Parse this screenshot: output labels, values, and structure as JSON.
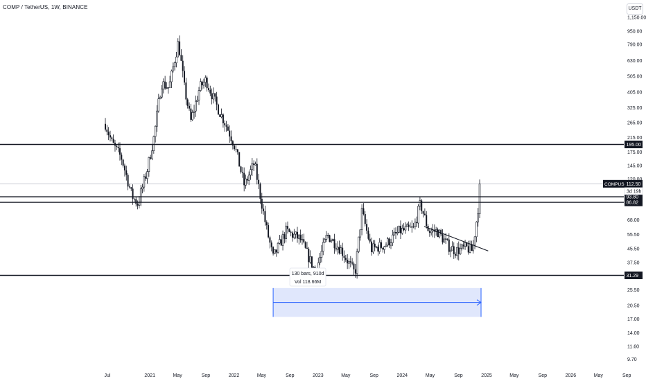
{
  "header": {
    "symbol_title": "COMP / TetherUS, 1W, BINANCE",
    "currency": "USDT"
  },
  "colors": {
    "candle": "#131722",
    "level_line": "#131722",
    "current_price_line": "#c8cbd2",
    "range_fill": "#dbe3fb",
    "range_stroke": "#2962ff",
    "axis_text": "#131722"
  },
  "chart_data": {
    "type": "candlestick",
    "scale": "log",
    "y_ticks": [
      "1,150.00",
      "950.00",
      "790.00",
      "630.00",
      "505.00",
      "405.00",
      "325.00",
      "265.00",
      "215.00",
      "175.00",
      "145.00",
      "120.00",
      "68.00",
      "55.50",
      "45.50",
      "37.50",
      "25.50",
      "20.50",
      "17.00",
      "14.00",
      "11.60",
      "9.70"
    ],
    "x_ticks": [
      "Jul",
      "2021",
      "May",
      "Sep",
      "2022",
      "May",
      "Sep",
      "2023",
      "May",
      "Sep",
      "2024",
      "May",
      "Sep",
      "2025",
      "May",
      "Sep",
      "2026",
      "May",
      "Sep"
    ],
    "ohlc_anchors": [
      {
        "date": "2020-06-22",
        "price": 260
      },
      {
        "date": "2020-07-20",
        "price": 200
      },
      {
        "date": "2020-09-01",
        "price": 160
      },
      {
        "date": "2020-10-15",
        "price": 95
      },
      {
        "date": "2020-11-10",
        "price": 85
      },
      {
        "date": "2020-12-20",
        "price": 135
      },
      {
        "date": "2021-01-20",
        "price": 220
      },
      {
        "date": "2021-02-20",
        "price": 460
      },
      {
        "date": "2021-03-25",
        "price": 430
      },
      {
        "date": "2021-05-05",
        "price": 820
      },
      {
        "date": "2021-06-01",
        "price": 420
      },
      {
        "date": "2021-06-28",
        "price": 270
      },
      {
        "date": "2021-08-05",
        "price": 430
      },
      {
        "date": "2021-09-01",
        "price": 480
      },
      {
        "date": "2021-10-20",
        "price": 330
      },
      {
        "date": "2021-12-01",
        "price": 250
      },
      {
        "date": "2022-01-05",
        "price": 190
      },
      {
        "date": "2022-02-15",
        "price": 110
      },
      {
        "date": "2022-03-30",
        "price": 150
      },
      {
        "date": "2022-05-20",
        "price": 62
      },
      {
        "date": "2022-06-20",
        "price": 40
      },
      {
        "date": "2022-08-15",
        "price": 58
      },
      {
        "date": "2022-10-15",
        "price": 52
      },
      {
        "date": "2022-12-20",
        "price": 33
      },
      {
        "date": "2023-02-10",
        "price": 55
      },
      {
        "date": "2023-04-10",
        "price": 45
      },
      {
        "date": "2023-06-10",
        "price": 32
      },
      {
        "date": "2023-07-10",
        "price": 76
      },
      {
        "date": "2023-08-20",
        "price": 45
      },
      {
        "date": "2023-10-20",
        "price": 48
      },
      {
        "date": "2023-12-20",
        "price": 58
      },
      {
        "date": "2024-02-20",
        "price": 60
      },
      {
        "date": "2024-03-20",
        "price": 85
      },
      {
        "date": "2024-04-25",
        "price": 58
      },
      {
        "date": "2024-06-01",
        "price": 58
      },
      {
        "date": "2024-07-20",
        "price": 47
      },
      {
        "date": "2024-08-20",
        "price": 44
      },
      {
        "date": "2024-10-05",
        "price": 46
      },
      {
        "date": "2024-11-01",
        "price": 44
      },
      {
        "date": "2024-11-20",
        "price": 70
      },
      {
        "date": "2024-12-08",
        "price": 112.5
      }
    ],
    "horizontal_levels": [
      {
        "label": "195.00",
        "value": 195.0
      },
      {
        "label": "93.80",
        "value": 93.8
      },
      {
        "label": "86.82",
        "value": 86.82
      },
      {
        "label": "31.29",
        "value": 31.29
      }
    ],
    "current_price": {
      "symbol": "COMPUSDT",
      "value": 112.5,
      "label": "112.50",
      "countdown": "3d 19h"
    },
    "trendline": {
      "start": {
        "date": "2024-04-05",
        "price": 62
      },
      "end": {
        "date": "2025-01-08",
        "price": 44
      }
    },
    "range_measure": {
      "start_date": "2022-06-20",
      "end_date": "2024-12-08",
      "price_low": 17.5,
      "price_high": 26.2,
      "bars_label": "130 bars, 910d",
      "volume_label": "Vol 118.66M"
    }
  }
}
